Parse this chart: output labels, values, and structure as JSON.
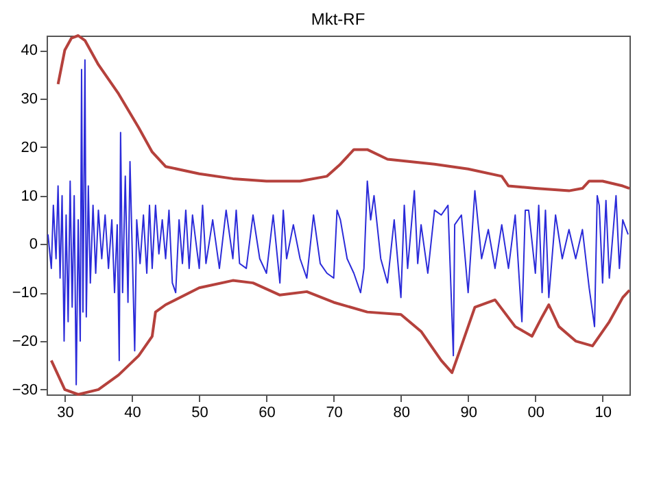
{
  "chart_data": {
    "type": "line",
    "title": "Mkt-RF",
    "xlim": [
      1927.3,
      2014
    ],
    "ylim": [
      -31,
      43
    ],
    "xticks": [
      {
        "value": 1930,
        "label": "30"
      },
      {
        "value": 1940,
        "label": "40"
      },
      {
        "value": 1950,
        "label": "50"
      },
      {
        "value": 1960,
        "label": "60"
      },
      {
        "value": 1970,
        "label": "70"
      },
      {
        "value": 1980,
        "label": "80"
      },
      {
        "value": 1990,
        "label": "90"
      },
      {
        "value": 2000,
        "label": "00"
      },
      {
        "value": 2010,
        "label": "10"
      }
    ],
    "yticks": [
      -30,
      -20,
      -10,
      0,
      10,
      20,
      30,
      40
    ],
    "grid": false,
    "series": [
      {
        "color": "#2b2bd9",
        "x": [
          1927.5,
          1928,
          1928.3,
          1928.7,
          1929,
          1929.3,
          1929.6,
          1929.9,
          1930.2,
          1930.5,
          1930.8,
          1931.1,
          1931.4,
          1931.7,
          1932.0,
          1932.3,
          1932.5,
          1932.7,
          1933.0,
          1933.2,
          1933.5,
          1933.8,
          1934.2,
          1934.6,
          1935,
          1935.5,
          1936,
          1936.5,
          1937,
          1937.4,
          1937.8,
          1938.1,
          1938.3,
          1938.6,
          1939,
          1939.4,
          1939.7,
          1940.1,
          1940.4,
          1940.7,
          1941.2,
          1941.7,
          1942.2,
          1942.6,
          1943,
          1943.5,
          1944,
          1944.5,
          1945,
          1945.5,
          1946,
          1946.5,
          1947,
          1947.5,
          1948,
          1948.5,
          1949,
          1950,
          1950.5,
          1951,
          1952,
          1953,
          1954,
          1955,
          1955.5,
          1956,
          1957,
          1958,
          1959,
          1960,
          1961,
          1962,
          1962.5,
          1963,
          1964,
          1965,
          1966,
          1967,
          1968,
          1969,
          1970,
          1970.5,
          1971,
          1972,
          1973,
          1974,
          1974.5,
          1975,
          1975.5,
          1976,
          1977,
          1978,
          1979,
          1980,
          1980.5,
          1981,
          1982,
          1982.5,
          1983,
          1984,
          1985,
          1986,
          1987,
          1987.8,
          1988,
          1989,
          1990,
          1991,
          1992,
          1993,
          1994,
          1995,
          1996,
          1997,
          1998,
          1998.5,
          1999,
          2000,
          2000.5,
          2001,
          2001.5,
          2002,
          2003,
          2004,
          2005,
          2006,
          2007,
          2008,
          2008.8,
          2009.2,
          2009.5,
          2010,
          2010.5,
          2011,
          2012,
          2012.5,
          2013,
          2013.8
        ],
        "values": [
          2,
          -5,
          8,
          -3,
          12,
          -7,
          10,
          -20,
          6,
          -16,
          13,
          -13,
          10,
          -29,
          5,
          -20,
          36,
          -14,
          38,
          -15,
          12,
          -8,
          8,
          -6,
          7,
          -3,
          6,
          -5,
          5,
          -10,
          4,
          -24,
          23,
          -10,
          14,
          -12,
          17,
          -5,
          -22,
          5,
          -4,
          6,
          -6,
          8,
          -5,
          8,
          -2,
          5,
          -3,
          7,
          -8,
          -10,
          5,
          -4,
          7,
          -5,
          6,
          -5,
          8,
          -4,
          5,
          -5,
          7,
          -3,
          7,
          -4,
          -5,
          6,
          -3,
          -6,
          6,
          -8,
          7,
          -3,
          4,
          -3,
          -7,
          6,
          -4,
          -6,
          -7,
          7,
          5,
          -3,
          -6,
          -10,
          -5,
          13,
          5,
          10,
          -3,
          -8,
          5,
          -11,
          8,
          -5,
          11,
          -4,
          4,
          -6,
          7,
          6,
          8,
          -23,
          4,
          6,
          -10,
          11,
          -3,
          3,
          -5,
          4,
          -5,
          6,
          -16,
          7,
          7,
          -6,
          8,
          -10,
          7,
          -11,
          6,
          -3,
          3,
          -3,
          3,
          -9,
          -17,
          10,
          8,
          -8,
          9,
          -7,
          10,
          -5,
          5,
          2
        ]
      },
      {
        "color": "#b5413c",
        "x": [
          1929,
          1930,
          1931,
          1932,
          1933,
          1935,
          1938,
          1941,
          1943,
          1945,
          1950,
          1955,
          1960,
          1965,
          1969,
          1971,
          1973,
          1975,
          1978,
          1985,
          1990,
          1995,
          1996,
          2000,
          2005,
          2007,
          2008,
          2010,
          2013,
          2014
        ],
        "values": [
          33,
          40,
          42.5,
          43,
          42,
          37,
          31,
          24,
          19,
          16,
          14.5,
          13.5,
          13,
          13,
          14,
          16.5,
          19.5,
          19.5,
          17.5,
          16.5,
          15.5,
          14,
          12,
          11.5,
          11,
          11.5,
          13,
          13,
          12,
          11.5
        ]
      },
      {
        "color": "#b5413c",
        "x": [
          1928,
          1930,
          1932,
          1935,
          1938,
          1941,
          1943,
          1943.5,
          1945,
          1950,
          1955,
          1958,
          1962,
          1966,
          1970,
          1975,
          1980,
          1983,
          1986,
          1987.6,
          1989,
          1991,
          1994,
          1997,
          1999.5,
          2001,
          2002,
          2003.5,
          2006,
          2008.5,
          2011,
          2013,
          2014
        ],
        "values": [
          -24,
          -30,
          -31,
          -30,
          -27,
          -23,
          -19,
          -14,
          -12.5,
          -9,
          -7.5,
          -8,
          -10.5,
          -9.8,
          -12,
          -14,
          -14.5,
          -18,
          -24,
          -26.5,
          -21,
          -13,
          -11.5,
          -17,
          -19,
          -15,
          -12.5,
          -17,
          -20,
          -21,
          -16,
          -11,
          -9.5
        ]
      }
    ]
  }
}
